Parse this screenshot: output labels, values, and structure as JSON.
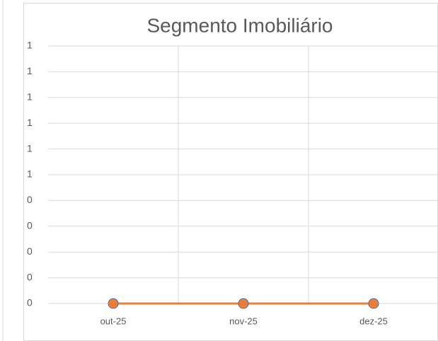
{
  "chart_data": {
    "type": "line",
    "title": "Segmento Imobiliário",
    "categories": [
      "out-25",
      "nov-25",
      "dez-25"
    ],
    "series": [
      {
        "name": "Segmento Imobiliário",
        "color": "#ed7d31",
        "marker_edge": "#4472c4",
        "values": [
          0,
          0,
          0
        ]
      }
    ],
    "ylim": [
      0,
      1
    ],
    "yticks": [
      0,
      {
        "value": 0.1,
        "label": "0"
      },
      {
        "value": 0.2,
        "label": "0"
      },
      {
        "value": 0.3,
        "label": "0"
      },
      {
        "value": 0.4,
        "label": "0"
      },
      {
        "value": 0.5,
        "label": "1"
      },
      {
        "value": 0.6,
        "label": "1"
      },
      {
        "value": 0.7,
        "label": "1"
      },
      {
        "value": 0.8,
        "label": "1"
      },
      {
        "value": 0.9,
        "label": "1"
      },
      1
    ],
    "grid": true
  }
}
